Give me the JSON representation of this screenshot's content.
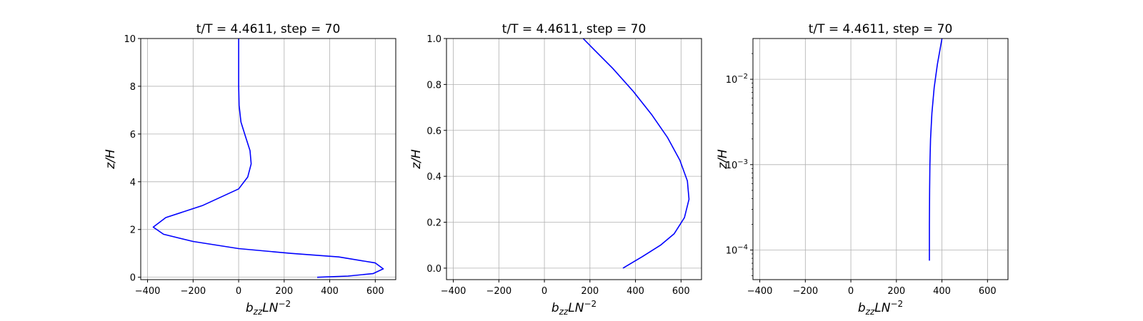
{
  "chart_data": [
    {
      "type": "line",
      "title": "t/T = 4.4611, step = 70",
      "xlabel": {
        "base": "b",
        "sub": "zz",
        "rest": "LN",
        "sup": "−2"
      },
      "ylabel": "z/H",
      "xlim": [
        -430,
        690
      ],
      "ylim": [
        -0.1,
        10
      ],
      "yscale": "linear",
      "xticks": [
        -400,
        -200,
        0,
        200,
        400,
        600
      ],
      "xtick_labels": [
        "−400",
        "−200",
        "0",
        "200",
        "400",
        "600"
      ],
      "yticks": [
        0,
        2,
        4,
        6,
        8,
        10
      ],
      "ytick_labels": [
        "0",
        "2",
        "4",
        "6",
        "8",
        "10"
      ],
      "grid": true,
      "series": [
        {
          "color": "#0000ff",
          "x": [
            345,
            480,
            590,
            635,
            600,
            440,
            230,
            0,
            -200,
            -330,
            -375,
            -320,
            -160,
            0,
            40,
            55,
            50,
            30,
            10,
            2,
            0,
            0,
            0
          ],
          "y": [
            0,
            0.05,
            0.15,
            0.35,
            0.6,
            0.85,
            1.0,
            1.2,
            1.5,
            1.8,
            2.1,
            2.5,
            3.0,
            3.7,
            4.2,
            4.75,
            5.3,
            5.9,
            6.5,
            7.2,
            8.0,
            9.0,
            10.0
          ]
        }
      ]
    },
    {
      "type": "line",
      "title": "t/T = 4.4611, step = 70",
      "xlabel": {
        "base": "b",
        "sub": "zz",
        "rest": "LN",
        "sup": "−2"
      },
      "ylabel": "z/H",
      "xlim": [
        -430,
        690
      ],
      "ylim": [
        -0.05,
        1.0
      ],
      "yscale": "linear",
      "xticks": [
        -400,
        -200,
        0,
        200,
        400,
        600
      ],
      "xtick_labels": [
        "−400",
        "−200",
        "0",
        "200",
        "400",
        "600"
      ],
      "yticks": [
        0,
        0.2,
        0.4,
        0.6,
        0.8,
        1.0
      ],
      "ytick_labels": [
        "0.0",
        "0.2",
        "0.4",
        "0.6",
        "0.8",
        "1.0"
      ],
      "grid": true,
      "series": [
        {
          "color": "#0000ff",
          "x": [
            345,
            430,
            510,
            570,
            615,
            635,
            628,
            595,
            540,
            470,
            390,
            300,
            210,
            170
          ],
          "y": [
            0,
            0.05,
            0.1,
            0.15,
            0.22,
            0.3,
            0.38,
            0.47,
            0.57,
            0.67,
            0.77,
            0.87,
            0.96,
            1.0
          ]
        }
      ]
    },
    {
      "type": "line",
      "title": "t/T = 4.4611, step = 70",
      "xlabel": {
        "base": "b",
        "sub": "zz",
        "rest": "LN",
        "sup": "−2"
      },
      "ylabel": "z/H",
      "xlim": [
        -430,
        690
      ],
      "ylim": [
        4.5e-05,
        0.03
      ],
      "yscale": "log",
      "xticks": [
        -400,
        -200,
        0,
        200,
        400,
        600
      ],
      "xtick_labels": [
        "−400",
        "−200",
        "0",
        "200",
        "400",
        "600"
      ],
      "yticks": [
        0.0001,
        0.001,
        0.01
      ],
      "ytick_labels": [
        {
          "base": "10",
          "sup": "−4"
        },
        {
          "base": "10",
          "sup": "−3"
        },
        {
          "base": "10",
          "sup": "−2"
        }
      ],
      "grid": true,
      "series": [
        {
          "color": "#0000ff",
          "x": [
            345,
            345,
            346,
            347,
            350,
            356,
            366,
            380,
            400
          ],
          "y": [
            7.5e-05,
            0.0002,
            0.0005,
            0.001,
            0.002,
            0.004,
            0.008,
            0.015,
            0.03
          ]
        }
      ]
    }
  ]
}
